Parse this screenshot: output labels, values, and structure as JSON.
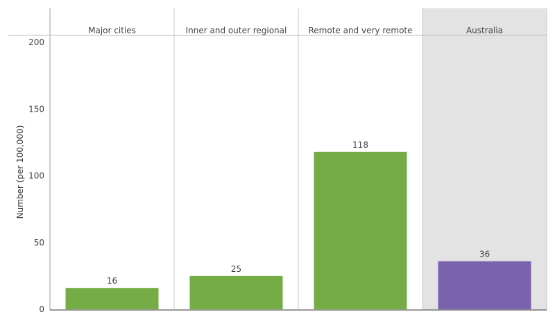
{
  "chart_data": {
    "type": "bar",
    "categories": [
      "Major cities",
      "Inner and outer regional",
      "Remote and very remote",
      "Australia"
    ],
    "values": [
      16,
      25,
      118,
      36
    ],
    "value_labels": [
      "16",
      "25",
      "118",
      "36"
    ],
    "bar_colors": [
      "#76ac45",
      "#76ac45",
      "#76ac45",
      "#7b62ad"
    ],
    "highlight_category": "Australia",
    "highlight_background": "#e3e3e3",
    "ylabel": "Number (per 100,000)",
    "ylim": [
      0,
      200
    ],
    "yticks": [
      0,
      50,
      100,
      150,
      200
    ],
    "grid": false,
    "legend": "none"
  }
}
